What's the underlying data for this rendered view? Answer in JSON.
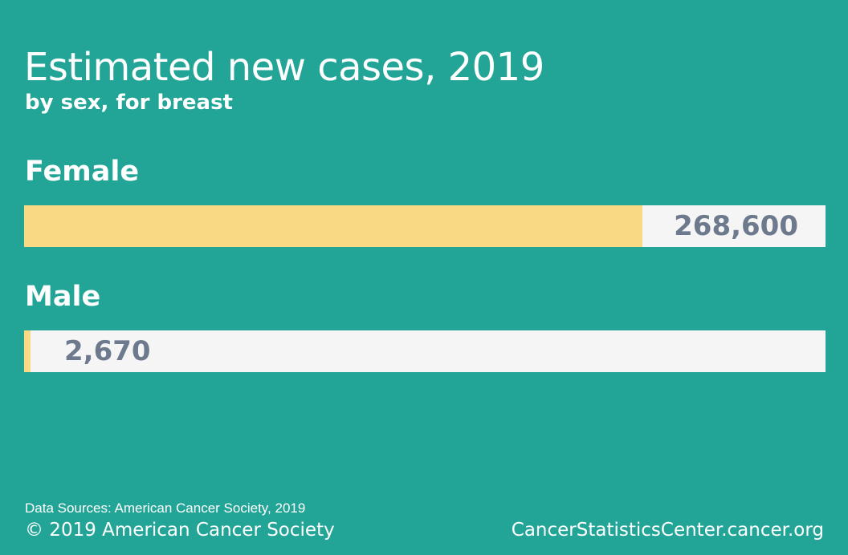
{
  "chart_data": {
    "type": "bar",
    "orientation": "horizontal",
    "title": "Estimated new cases, 2019",
    "subtitle": "by sex, for breast",
    "categories": [
      "Female",
      "Male"
    ],
    "values": [
      268600,
      2670
    ],
    "value_labels": [
      "268,600",
      "2,670"
    ],
    "xlim": [
      0,
      348000
    ],
    "xlabel": "",
    "ylabel": ""
  },
  "footer": {
    "source": "Data Sources: American Cancer Society, 2019",
    "copyright": "© 2019 American Cancer Society",
    "website": "CancerStatisticsCenter.cancer.org"
  },
  "colors": {
    "background": "#22a597",
    "bar_fill": "#fad985",
    "bar_track": "#f5f5f5",
    "value_text": "#6d7a8d"
  }
}
